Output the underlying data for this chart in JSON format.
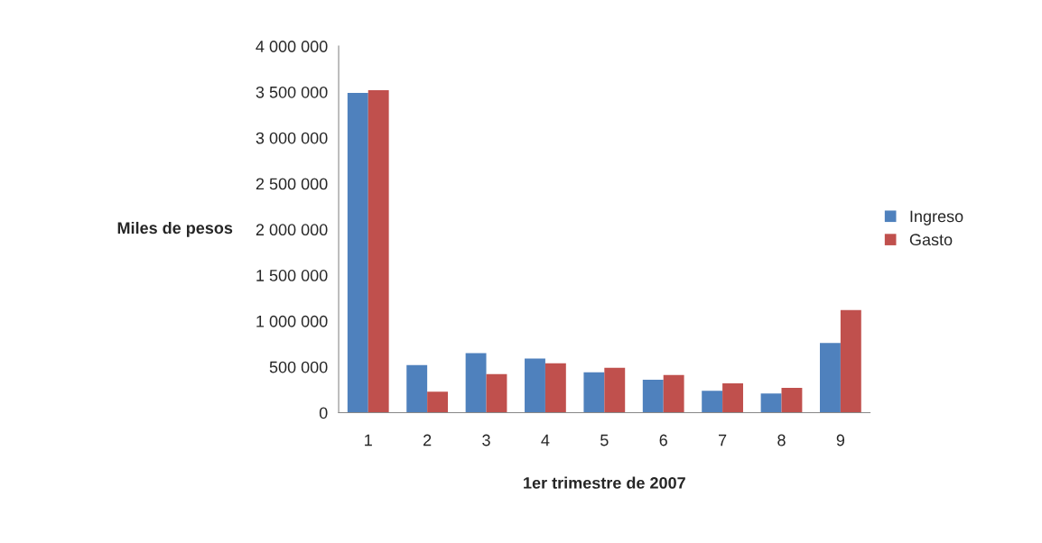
{
  "chart_data": {
    "type": "bar",
    "xlabel": "1er trimestre de 2007",
    "ylabel": "Miles de pesos",
    "categories": [
      "1",
      "2",
      "3",
      "4",
      "5",
      "6",
      "7",
      "8",
      "9"
    ],
    "series": [
      {
        "name": "Ingreso",
        "color": "#4f81bd",
        "values": [
          3490000,
          520000,
          650000,
          590000,
          440000,
          360000,
          240000,
          210000,
          760000
        ]
      },
      {
        "name": "Gasto",
        "color": "#c0504d",
        "values": [
          3520000,
          230000,
          420000,
          540000,
          490000,
          410000,
          320000,
          270000,
          1120000
        ]
      }
    ],
    "ylim": [
      0,
      4000000
    ],
    "yticks": [
      {
        "value": 0,
        "label": "0"
      },
      {
        "value": 500000,
        "label": "500 000"
      },
      {
        "value": 1000000,
        "label": "1 000 000"
      },
      {
        "value": 1500000,
        "label": "1 500 000"
      },
      {
        "value": 2000000,
        "label": "2 000 000"
      },
      {
        "value": 2500000,
        "label": "2 500 000"
      },
      {
        "value": 3000000,
        "label": "3 000 000"
      },
      {
        "value": 3500000,
        "label": "3 500 000"
      },
      {
        "value": 4000000,
        "label": "4 000 000"
      }
    ],
    "grid": false,
    "legend": "right"
  }
}
